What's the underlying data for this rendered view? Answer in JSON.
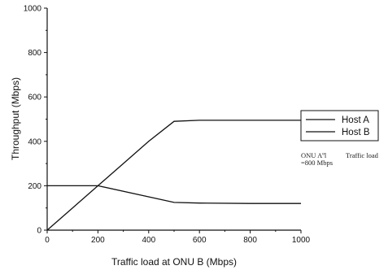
{
  "chart_data": {
    "type": "line",
    "title": "",
    "xlabel": "Traffic load at ONU B (Mbps)",
    "ylabel": "Throughput (Mbps)",
    "xlim": [
      0,
      1000
    ],
    "ylim": [
      0,
      1000
    ],
    "xticks": [
      0,
      200,
      400,
      600,
      800,
      1000
    ],
    "yticks": [
      0,
      200,
      400,
      600,
      800,
      1000
    ],
    "xtick_labels": [
      "0",
      "200",
      "400",
      "600",
      "800",
      "1000"
    ],
    "ytick_labels": [
      "0",
      "200",
      "400",
      "600",
      "800",
      "1000"
    ],
    "grid": false,
    "legend_position": "right",
    "series": [
      {
        "name": "Host A",
        "x": [
          0,
          200,
          500,
          600,
          800,
          1000
        ],
        "y": [
          200,
          200,
          125,
          122,
          120,
          120
        ]
      },
      {
        "name": "Host B",
        "x": [
          0,
          100,
          200,
          300,
          400,
          500,
          600,
          800,
          1000
        ],
        "y": [
          0,
          100,
          200,
          300,
          400,
          490,
          495,
          495,
          495
        ]
      }
    ],
    "annotation": {
      "line1_left": "ONU Aºl",
      "line1_right": "Traffic load",
      "line2": "=800 Mbps"
    }
  }
}
